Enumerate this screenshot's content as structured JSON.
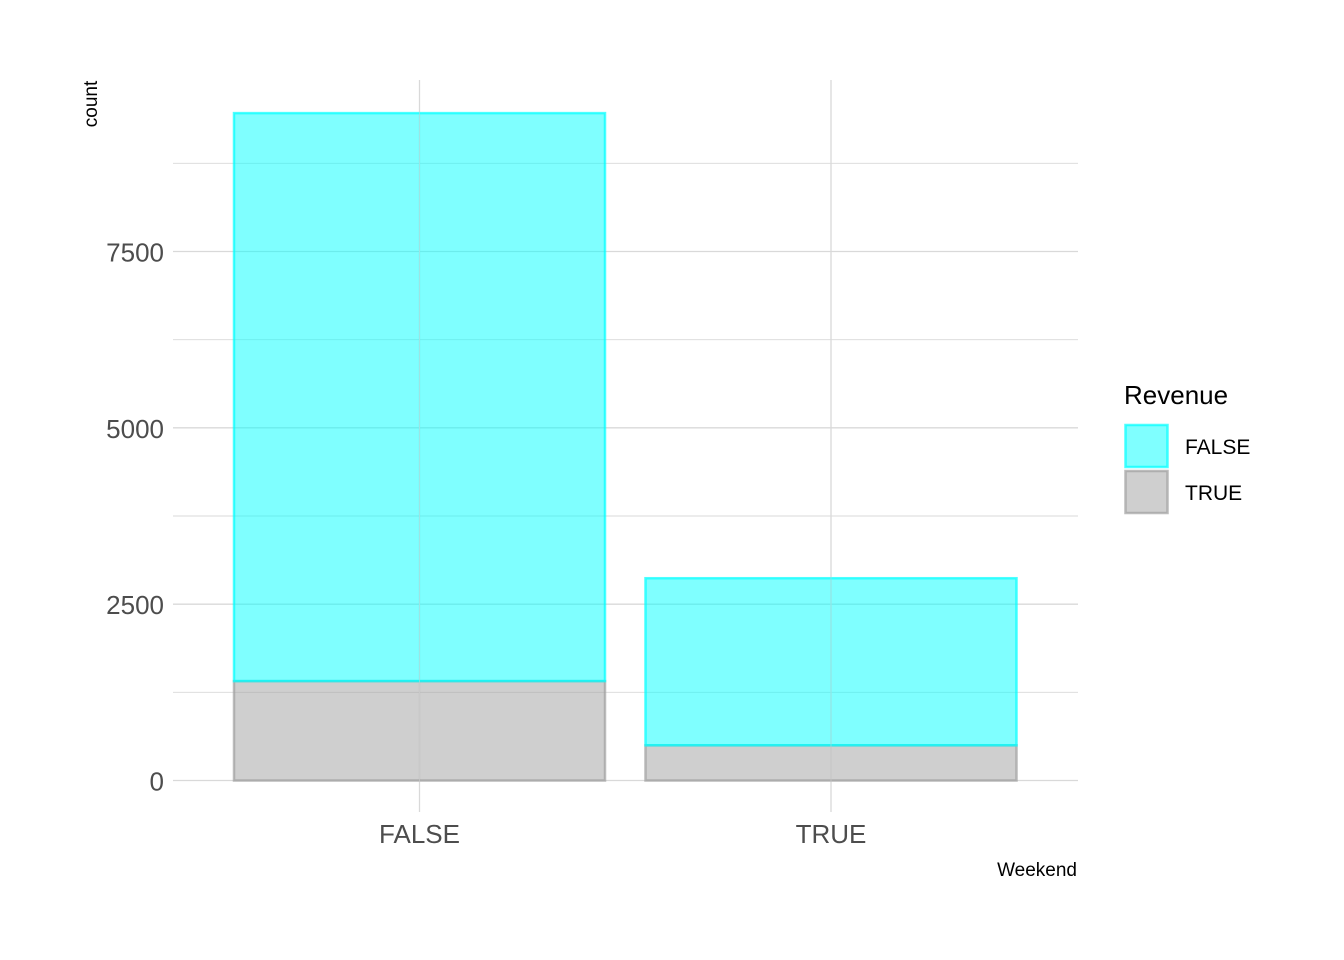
{
  "chart_data": {
    "type": "bar",
    "stacked": true,
    "x_label": "Weekend",
    "y_label": "count",
    "categories": [
      "FALSE",
      "TRUE"
    ],
    "series": [
      {
        "name": "FALSE",
        "values": [
          8053,
          2369
        ],
        "fill": "#00FFFF",
        "opacity": 0.5,
        "stroke": "#00FFFF"
      },
      {
        "name": "TRUE",
        "values": [
          1409,
          499
        ],
        "fill": "#A0A0A0",
        "opacity": 0.5,
        "stroke": "#A0A0A0"
      }
    ],
    "y_ticks": [
      0,
      2500,
      5000,
      7500
    ],
    "y_tick_labels": [
      "0",
      "2500",
      "5000",
      "7500"
    ],
    "ylim": [
      0,
      9500
    ],
    "grid": true,
    "legend": {
      "title": "Revenue",
      "position": "right"
    },
    "colors": {
      "grid": "#D9D9D9",
      "tick_text": "#4D4D4D"
    }
  }
}
